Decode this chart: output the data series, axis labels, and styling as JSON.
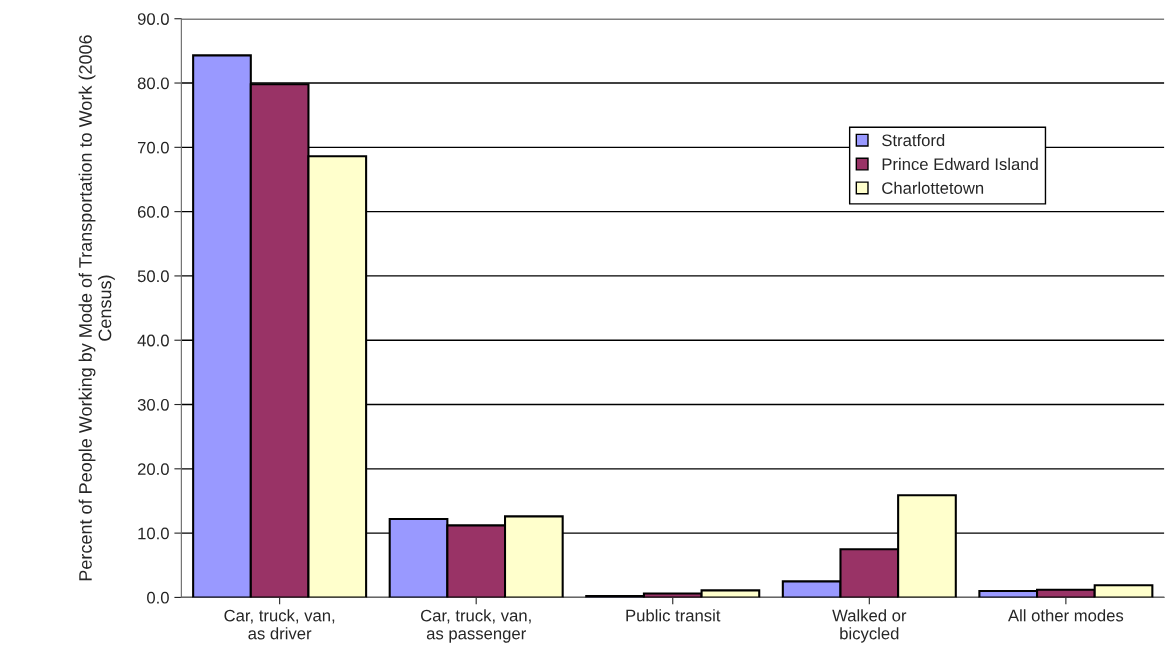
{
  "chart_data": {
    "type": "bar",
    "ylabel": "Percent of People Working by Mode of Transportation to Work (2006 Census)",
    "categories": [
      "Car, truck, van,\nas driver",
      "Car, truck, van,\nas passenger",
      "Public transit",
      "Walked or\nbicycled",
      "All other modes"
    ],
    "series": [
      {
        "name": "Stratford",
        "color": "#9999ff",
        "values": [
          84.3,
          12.2,
          0.2,
          2.5,
          1.0
        ]
      },
      {
        "name": "Prince Edward Island",
        "color": "#993366",
        "values": [
          79.8,
          11.2,
          0.6,
          7.5,
          1.2
        ]
      },
      {
        "name": "Charlottetown",
        "color": "#ffffcc",
        "values": [
          68.6,
          12.6,
          1.1,
          15.9,
          1.9
        ]
      }
    ],
    "ylim": [
      0,
      90
    ],
    "yticks": [
      {
        "value": 0,
        "label": "0.0"
      },
      {
        "value": 10,
        "label": "10.0"
      },
      {
        "value": 20,
        "label": "20.0"
      },
      {
        "value": 30,
        "label": "30.0"
      },
      {
        "value": 40,
        "label": "40.0"
      },
      {
        "value": 50,
        "label": "50.0"
      },
      {
        "value": 60,
        "label": "60.0"
      },
      {
        "value": 70,
        "label": "70.0"
      },
      {
        "value": 80,
        "label": "80.0"
      },
      {
        "value": 90,
        "label": "90.0"
      }
    ],
    "grid": "y",
    "legend": "top right"
  }
}
